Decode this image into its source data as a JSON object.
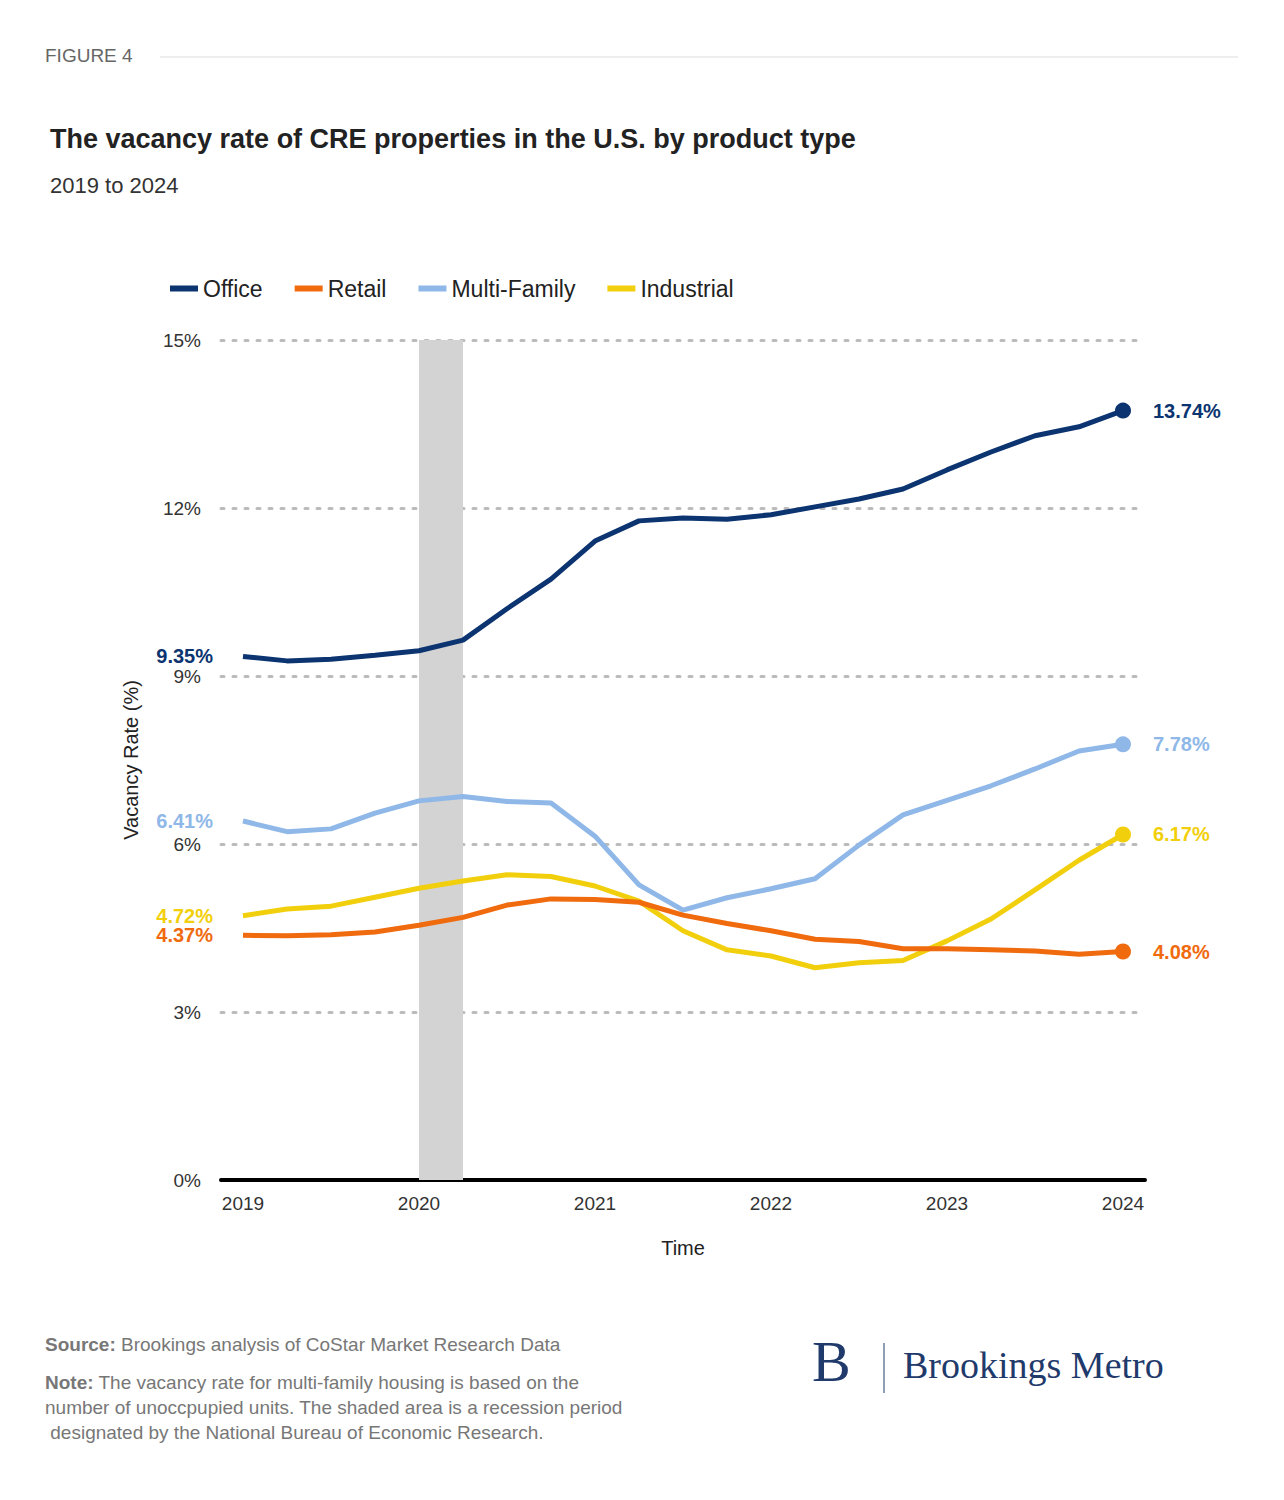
{
  "chart_data": {
    "type": "line",
    "figure_label": "FIGURE 4",
    "title": "The vacancy rate of CRE properties in the U.S. by product type",
    "subtitle": "2019 to 2024",
    "x_label": "Time",
    "y_label": "Vacancy Rate (%)",
    "categories": [
      "2019",
      null,
      null,
      null,
      "2020",
      null,
      null,
      null,
      "2021",
      null,
      null,
      null,
      "2022",
      null,
      null,
      null,
      "2023",
      null,
      null,
      null,
      "2024"
    ],
    "series": [
      {
        "name": "Office",
        "color": "#0b3470",
        "values": [
          9.35,
          9.27,
          9.3,
          9.37,
          9.45,
          9.64,
          10.2,
          10.73,
          11.41,
          11.77,
          11.82,
          11.8,
          11.88,
          12.02,
          12.16,
          12.34,
          12.68,
          13.0,
          13.29,
          13.45,
          13.74
        ],
        "value_labels": [
          "9.35%",
          null,
          null,
          null,
          null,
          null,
          null,
          null,
          null,
          null,
          null,
          null,
          null,
          null,
          null,
          null,
          null,
          null,
          null,
          null,
          "13.74%"
        ]
      },
      {
        "name": "Retail",
        "color": "#f06a0e",
        "values": [
          4.37,
          4.36,
          4.38,
          4.43,
          4.55,
          4.69,
          4.91,
          5.02,
          5.01,
          4.96,
          4.73,
          4.58,
          4.45,
          4.3,
          4.26,
          4.13,
          4.13,
          4.11,
          4.09,
          4.03,
          4.08
        ],
        "value_labels": [
          "4.37%",
          null,
          null,
          null,
          null,
          null,
          null,
          null,
          null,
          null,
          null,
          null,
          null,
          null,
          null,
          null,
          null,
          null,
          null,
          null,
          "4.08%"
        ]
      },
      {
        "name": "Multi-Family",
        "color": "#8fb8e8",
        "values": [
          6.41,
          6.22,
          6.27,
          6.55,
          6.77,
          6.85,
          6.76,
          6.73,
          6.14,
          5.27,
          4.82,
          5.04,
          5.2,
          5.38,
          5.98,
          6.52,
          6.78,
          7.04,
          7.34,
          7.66,
          7.78
        ],
        "value_labels": [
          "6.41%",
          null,
          null,
          null,
          null,
          null,
          null,
          null,
          null,
          null,
          null,
          null,
          null,
          null,
          null,
          null,
          null,
          null,
          null,
          null,
          "7.78%"
        ]
      },
      {
        "name": "Industrial",
        "color": "#f2cf0c",
        "values": [
          4.72,
          4.84,
          4.89,
          5.05,
          5.21,
          5.34,
          5.45,
          5.42,
          5.25,
          4.98,
          4.45,
          4.11,
          4.0,
          3.79,
          3.88,
          3.92,
          4.27,
          4.66,
          5.18,
          5.71,
          6.17
        ],
        "value_labels": [
          "4.72%",
          null,
          null,
          null,
          null,
          null,
          null,
          null,
          null,
          null,
          null,
          null,
          null,
          null,
          null,
          null,
          null,
          null,
          null,
          null,
          "6.17%"
        ]
      }
    ],
    "ylim": [
      0,
      15
    ],
    "yticks": [
      {
        "value": 0,
        "label": "0%"
      },
      {
        "value": 3,
        "label": "3%"
      },
      {
        "value": 6,
        "label": "6%"
      },
      {
        "value": 9,
        "label": "9%"
      },
      {
        "value": 12,
        "label": "12%"
      },
      {
        "value": 15,
        "label": "15%"
      }
    ],
    "grid": true,
    "legend": "top left",
    "shaded_area": {
      "from": 4,
      "to": 5
    },
    "source": {
      "label": "Source:",
      "text": "Brookings analysis of CoStar Market Research Data"
    },
    "note": {
      "label": "Note:",
      "text": "The vacancy rate for multi-family housing is based on the number of unoccpupied units. The shaded area is a recession period designated by the National Bureau of Economic Research."
    },
    "branding": {
      "logo": "B",
      "name": "Brookings Metro"
    }
  }
}
